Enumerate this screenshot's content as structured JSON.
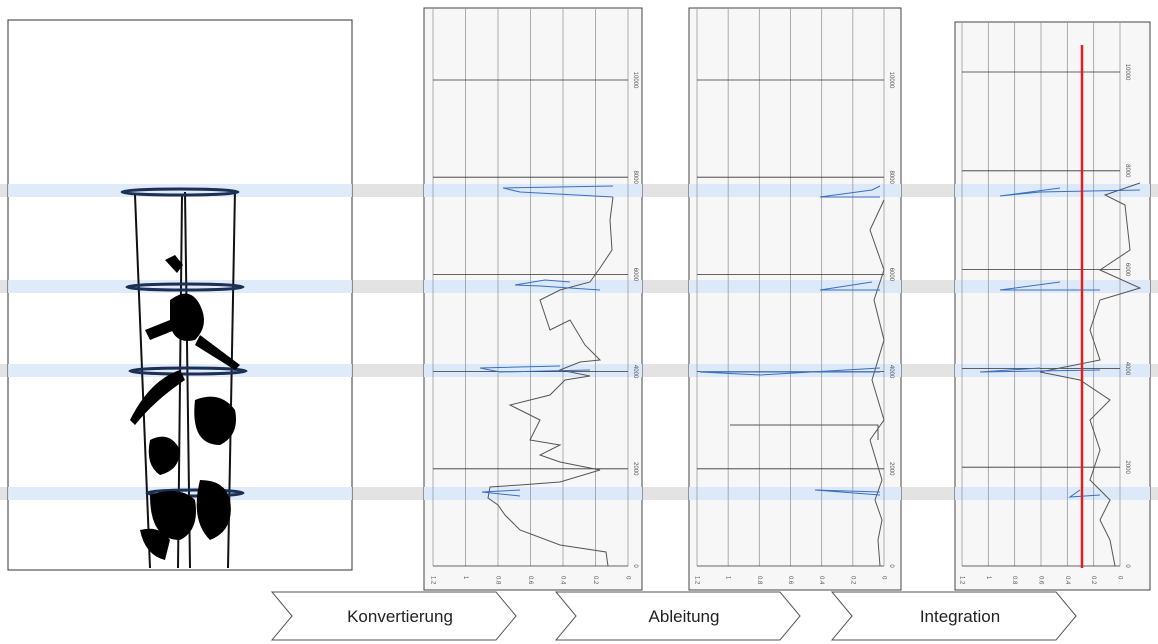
{
  "panels": [
    {
      "xticks": [
        "1.2",
        "1",
        "0.8",
        "0.6",
        "0.4",
        "0.2",
        "0"
      ],
      "yticks": [
        "0",
        "2000",
        "4000",
        "6000",
        "8000",
        "10000"
      ]
    },
    {
      "xticks": [
        "1.2",
        "1",
        "0.8",
        "0.6",
        "0.4",
        "0.2",
        "0"
      ],
      "yticks": [
        "0",
        "2000",
        "4000",
        "6000",
        "8000",
        "10000"
      ]
    },
    {
      "xticks": [
        "1.2",
        "1",
        "0.8",
        "0.6",
        "0.4",
        "0.2",
        "0"
      ],
      "yticks": [
        "0",
        "2000",
        "4000",
        "6000",
        "8000",
        "10000"
      ]
    }
  ],
  "steps": [
    "Konvertierung",
    "Ableitung",
    "Integration"
  ]
}
